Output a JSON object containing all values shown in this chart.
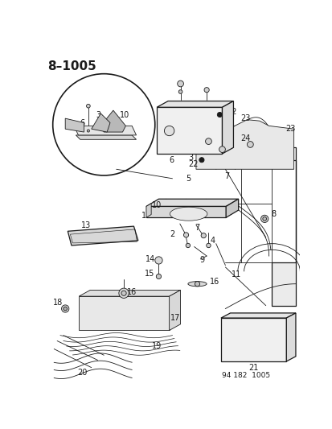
{
  "title": "8–1005",
  "footer": "94 182  1005",
  "bg_color": "#ffffff",
  "fig_width": 4.14,
  "fig_height": 5.33,
  "dpi": 100,
  "line_color": "#1a1a1a",
  "label_fontsize": 7.0,
  "title_fontsize": 11,
  "footer_fontsize": 6.5,
  "lw_thin": 0.6,
  "lw_med": 0.9,
  "lw_thick": 1.2
}
